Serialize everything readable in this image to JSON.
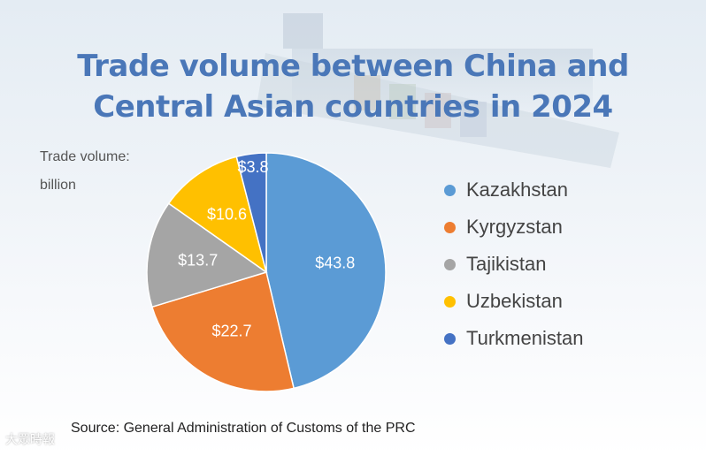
{
  "title": "Trade volume between China and Central Asian countries in 2024",
  "title_line1": "Trade volume between China and",
  "title_line2": "Central Asian countries in 2024",
  "unit_line1": "Trade volume:",
  "unit_line2": "billion",
  "source": "Source: General Administration of Customs of the PRC",
  "watermark": "大眾時報",
  "chart_data": {
    "type": "pie",
    "title": "Trade volume between China and Central Asian countries in 2024",
    "unit": "Trade volume: billion",
    "legend_position": "right",
    "slices": [
      {
        "name": "Kazakhstan",
        "value": 43.8,
        "label": "$43.8",
        "color": "#5b9bd5"
      },
      {
        "name": "Kyrgyzstan",
        "value": 22.7,
        "label": "$22.7",
        "color": "#ed7d31"
      },
      {
        "name": "Tajikistan",
        "value": 13.7,
        "label": "$13.7",
        "color": "#a5a5a5"
      },
      {
        "name": "Uzbekistan",
        "value": 10.6,
        "label": "$10.6",
        "color": "#ffc000"
      },
      {
        "name": "Turkmenistan",
        "value": 3.8,
        "label": "$3.8",
        "color": "#4472c4"
      }
    ]
  }
}
